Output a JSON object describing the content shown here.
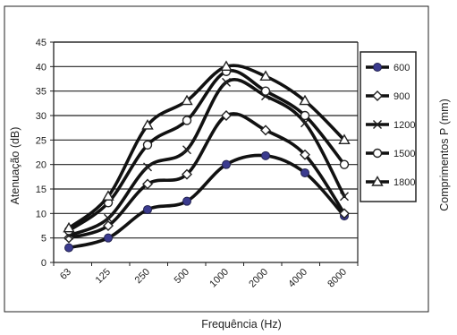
{
  "chart_data": {
    "type": "line",
    "title": "",
    "xlabel": "Frequência (Hz)",
    "ylabel": "Atenuação (dB)",
    "legend_title": "Comprimentos P (mm)",
    "legend_position": "right",
    "categories": [
      "63",
      "125",
      "250",
      "500",
      "1000",
      "2000",
      "4000",
      "8000"
    ],
    "ylim": [
      0,
      45
    ],
    "ytick_step": 5,
    "grid": "horizontal",
    "series": [
      {
        "name": "600",
        "marker": "circle-filled",
        "values": [
          3,
          5,
          10.8,
          12.5,
          20,
          21.8,
          18.3,
          9.5
        ]
      },
      {
        "name": "900",
        "marker": "diamond",
        "values": [
          5,
          7.5,
          16,
          18,
          30,
          27,
          22,
          10
        ]
      },
      {
        "name": "1200",
        "marker": "x",
        "values": [
          5.5,
          9,
          19.5,
          23,
          36.8,
          34,
          28.5,
          13.5
        ]
      },
      {
        "name": "1500",
        "marker": "circle-open",
        "values": [
          6.5,
          12.2,
          24,
          29,
          39,
          35,
          30,
          20
        ]
      },
      {
        "name": "1800",
        "marker": "triangle-open",
        "values": [
          7,
          13.5,
          28,
          33,
          40,
          38,
          33,
          25
        ]
      }
    ]
  }
}
